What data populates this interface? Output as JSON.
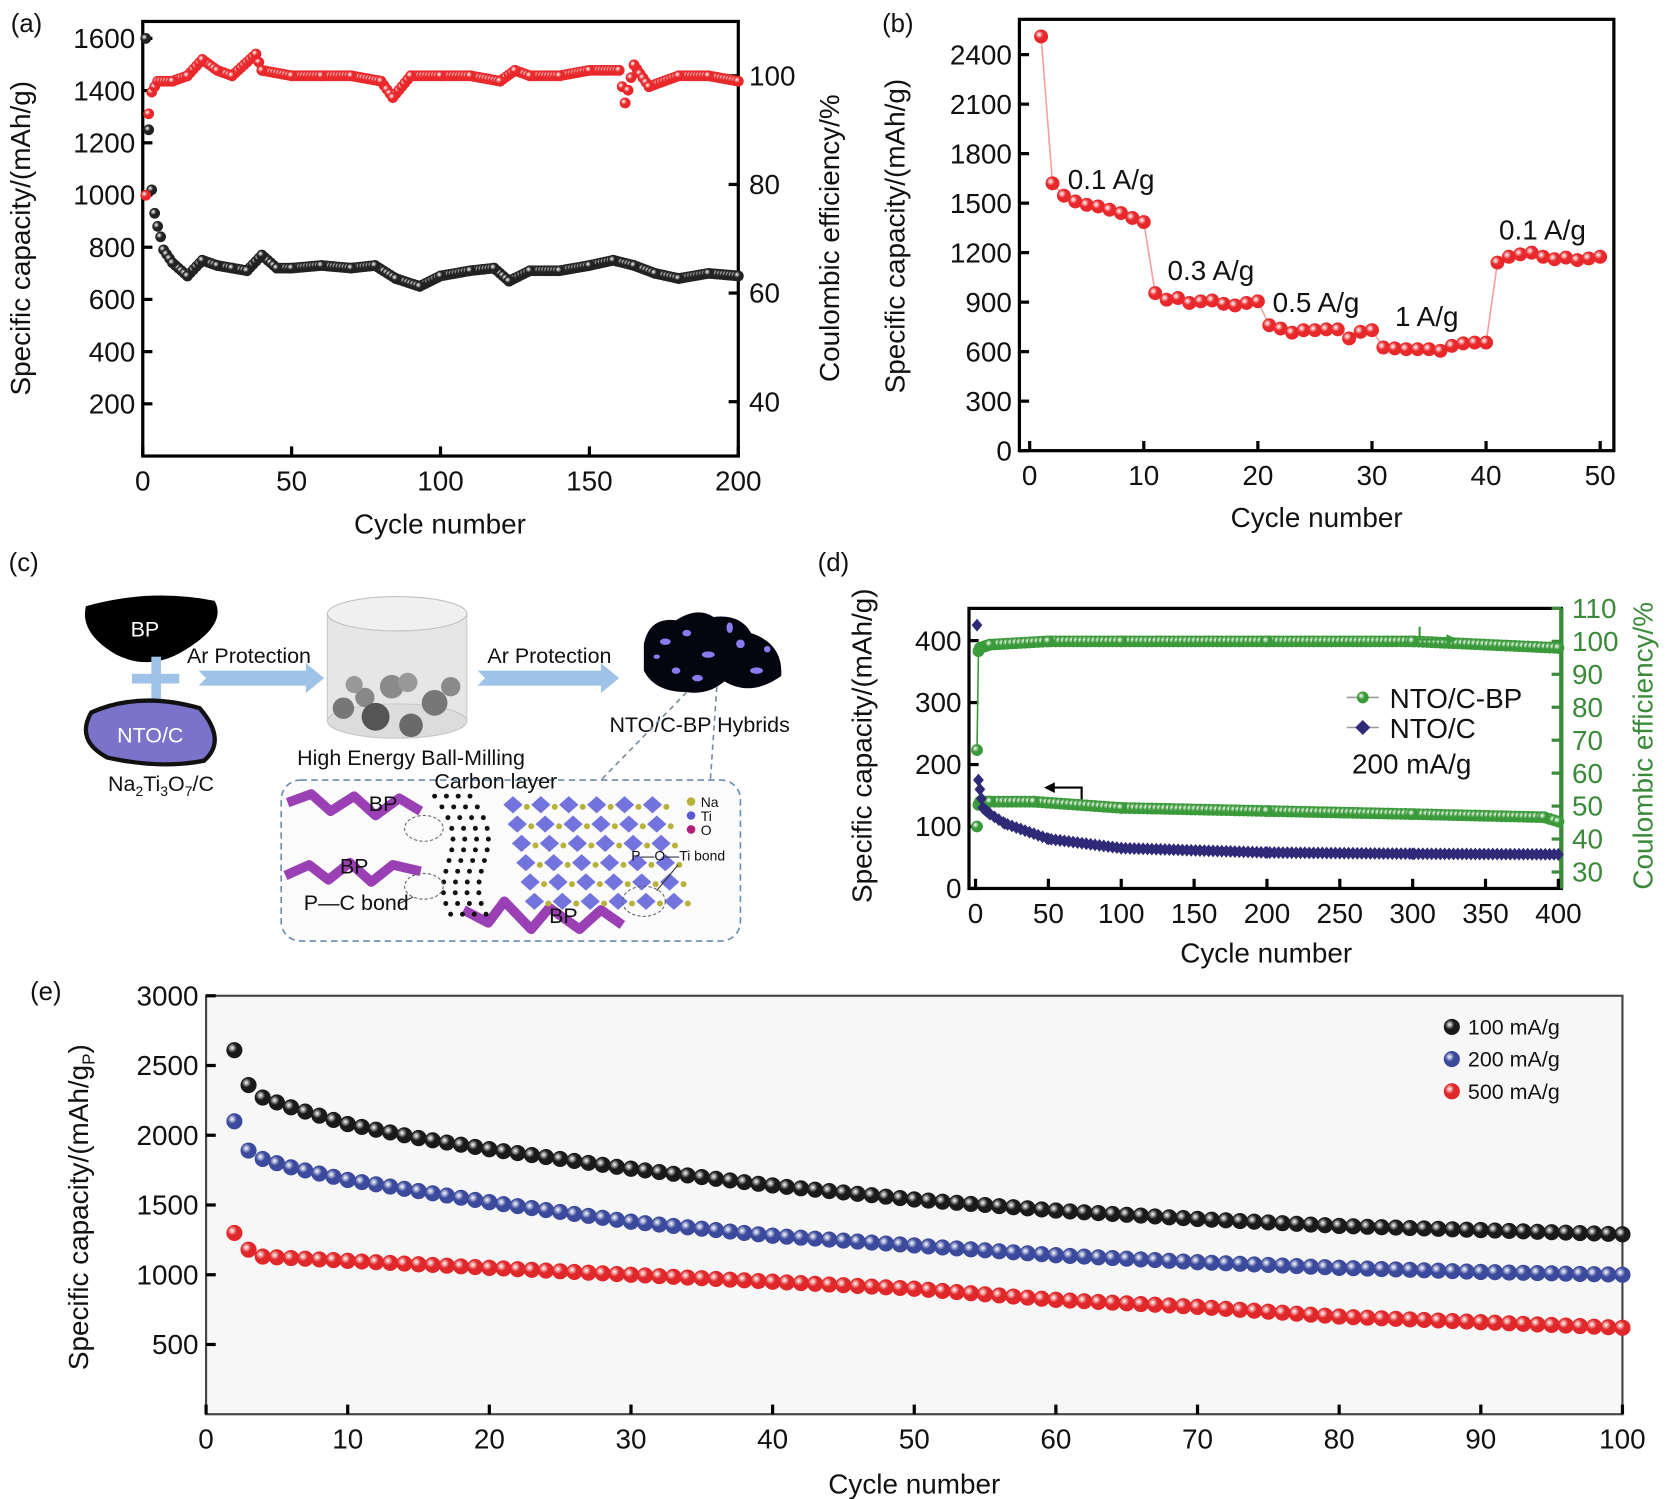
{
  "chart_data": [
    {
      "label": "(a)",
      "type": "scatter",
      "xlabel": "Cycle number",
      "ylabel": "Specific capacity/(mAh/g)",
      "y2label": "Coulombic efficiency/%",
      "xlim": [
        0,
        200
      ],
      "ylim": [
        0,
        1665
      ],
      "y2lim": [
        30,
        110
      ],
      "xticks": [
        0,
        50,
        100,
        150,
        200
      ],
      "yticks": [
        200,
        400,
        600,
        800,
        1000,
        1200,
        1400,
        1600
      ],
      "y2ticks": [
        40,
        60,
        80,
        100
      ],
      "grid": false,
      "series": [
        {
          "axis": "left",
          "color": "#222222",
          "marker": "circle",
          "x": [
            1,
            2,
            3,
            4,
            5,
            6,
            7,
            10,
            15,
            20,
            25,
            30,
            35,
            40,
            45,
            50,
            60,
            70,
            78,
            85,
            93,
            100,
            110,
            118,
            123,
            130,
            140,
            150,
            158,
            165,
            172,
            180,
            190,
            200
          ],
          "y": [
            1600,
            1250,
            1020,
            930,
            880,
            840,
            790,
            740,
            690,
            750,
            730,
            720,
            710,
            770,
            720,
            720,
            730,
            720,
            730,
            680,
            650,
            690,
            710,
            720,
            670,
            710,
            710,
            730,
            750,
            730,
            700,
            680,
            700,
            690
          ]
        },
        {
          "axis": "right",
          "color": "#e8282b",
          "marker": "circle",
          "x": [
            1,
            2,
            3,
            5,
            10,
            15,
            20,
            25,
            30,
            38,
            40,
            50,
            60,
            70,
            80,
            84,
            90,
            100,
            110,
            120,
            125,
            130,
            140,
            150,
            160,
            162,
            165,
            170,
            180,
            190,
            200
          ],
          "y": [
            78,
            93,
            97,
            99,
            99,
            100,
            103,
            101,
            100,
            104,
            101,
            100,
            100,
            100,
            99,
            96,
            100,
            100,
            100,
            99,
            101,
            100,
            100,
            101,
            101,
            95,
            102,
            98,
            100,
            100,
            99
          ]
        }
      ]
    },
    {
      "label": "(b)",
      "type": "line",
      "xlabel": "Cycle number",
      "ylabel": "Specific capacity/(mAh/g)",
      "xlim": [
        -0.9,
        51.2
      ],
      "ylim": [
        0,
        2614
      ],
      "xticks": [
        0,
        10,
        20,
        30,
        40,
        50
      ],
      "yticks": [
        0,
        300,
        600,
        900,
        1200,
        1500,
        1800,
        2100,
        2400
      ],
      "grid": false,
      "series": [
        {
          "axis": "left",
          "color": "#e8282b",
          "line_color": "#f4a0a0",
          "marker": "circle",
          "x": [
            1,
            2,
            3,
            4,
            5,
            6,
            7,
            8,
            9,
            10,
            11,
            12,
            13,
            14,
            15,
            16,
            17,
            18,
            19,
            20,
            21,
            22,
            23,
            24,
            25,
            26,
            27,
            28,
            29,
            30,
            31,
            32,
            33,
            34,
            35,
            36,
            37,
            38,
            39,
            40,
            41,
            42,
            43,
            44,
            45,
            46,
            47,
            48,
            49,
            50
          ],
          "y": [
            2510,
            1620,
            1545,
            1510,
            1490,
            1480,
            1460,
            1440,
            1410,
            1385,
            955,
            915,
            925,
            895,
            905,
            910,
            890,
            880,
            895,
            905,
            760,
            740,
            715,
            730,
            730,
            735,
            735,
            680,
            720,
            730,
            625,
            620,
            615,
            615,
            615,
            605,
            635,
            650,
            655,
            655,
            1140,
            1175,
            1190,
            1200,
            1175,
            1160,
            1170,
            1155,
            1165,
            1175
          ]
        }
      ],
      "annotations": [
        "0.1 A/g",
        "0.3 A/g",
        "0.5 A/g",
        "1 A/g",
        "0.1 A/g"
      ]
    },
    {
      "label": "(d)",
      "type": "scatter",
      "xlabel": "Cycle number",
      "ylabel": "Specific capacity/(mAh/g)",
      "y2label": "Coulombic efficiency/%",
      "xlim": [
        -4.5,
        402
      ],
      "ylim": [
        0,
        452
      ],
      "y2lim": [
        25,
        110
      ],
      "xticks": [
        0,
        50,
        100,
        150,
        200,
        250,
        300,
        350,
        400
      ],
      "yticks": [
        0,
        100,
        200,
        300,
        400
      ],
      "y2ticks": [
        30,
        40,
        50,
        60,
        70,
        80,
        90,
        100,
        110
      ],
      "y2color": "#3a8a3a",
      "grid": false,
      "legend_position": "center-right",
      "series": [
        {
          "name": "NTO/C-BP",
          "axis": "left",
          "color": "#3a9a3a",
          "marker": "circle",
          "x": [
            1,
            2,
            3,
            10,
            40,
            100,
            200,
            300,
            390,
            400
          ],
          "y": [
            100,
            135,
            140,
            140,
            140,
            130,
            125,
            120,
            115,
            108
          ]
        },
        {
          "name": "NTO/C-BP",
          "axis": "right",
          "color": "#3a9a3a",
          "marker": "circle",
          "x": [
            1,
            2,
            3,
            10,
            50,
            100,
            200,
            300,
            400
          ],
          "y": [
            67,
            97,
            98,
            99,
            100,
            100,
            100,
            100,
            98
          ]
        },
        {
          "name": "NTO/C",
          "axis": "left",
          "color": "#2e2a78",
          "marker": "diamond",
          "x": [
            1,
            2,
            3,
            5,
            10,
            20,
            50,
            100,
            200,
            300,
            400
          ],
          "y": [
            425,
            175,
            160,
            130,
            120,
            105,
            80,
            65,
            58,
            56,
            55
          ]
        }
      ],
      "legend": [
        "NTO/C-BP",
        "NTO/C"
      ],
      "annotation": "200 mA/g"
    },
    {
      "label": "(e)",
      "type": "scatter",
      "xlabel": "Cycle number",
      "ylabel_main": "Specific capacity/(mAh/g",
      "ylabel_sub": "P",
      "ylabel_end": ")",
      "xlim": [
        0,
        100
      ],
      "ylim": [
        0,
        3000
      ],
      "xticks": [
        0,
        10,
        20,
        30,
        40,
        50,
        60,
        70,
        80,
        90,
        100
      ],
      "yticks": [
        500,
        1000,
        1500,
        2000,
        2500,
        3000
      ],
      "grid": false,
      "legend_position": "top-right",
      "series": [
        {
          "name": "100 mA/g",
          "axis": "left",
          "color": "#1a1a1a",
          "marker": "circle",
          "x": [
            2,
            3,
            4,
            6,
            10,
            15,
            20,
            30,
            40,
            50,
            60,
            70,
            80,
            90,
            100
          ],
          "y": [
            2610,
            2360,
            2270,
            2200,
            2080,
            1980,
            1900,
            1760,
            1640,
            1540,
            1460,
            1400,
            1350,
            1320,
            1290
          ]
        },
        {
          "name": "200 mA/g",
          "axis": "left",
          "color": "#3b4a9c",
          "marker": "circle",
          "x": [
            2,
            3,
            4,
            6,
            10,
            15,
            20,
            30,
            40,
            50,
            60,
            70,
            80,
            90,
            100
          ],
          "y": [
            2100,
            1890,
            1830,
            1770,
            1680,
            1600,
            1520,
            1380,
            1280,
            1210,
            1140,
            1090,
            1050,
            1020,
            1000
          ]
        },
        {
          "name": "500 mA/g",
          "axis": "left",
          "color": "#e0272a",
          "marker": "circle",
          "x": [
            2,
            3,
            4,
            6,
            10,
            15,
            20,
            30,
            40,
            50,
            60,
            70,
            80,
            90,
            100
          ],
          "y": [
            1300,
            1180,
            1130,
            1120,
            1100,
            1075,
            1050,
            1000,
            950,
            900,
            820,
            770,
            700,
            660,
            620
          ]
        }
      ]
    }
  ],
  "diagram": {
    "label": "(c)",
    "bp": "BP",
    "nto": "NTO/C",
    "formula": {
      "p1": "Na",
      "s1": "2",
      "p2": "Ti",
      "s2": "3",
      "p3": "O",
      "s3": "7",
      "p4": "/C"
    },
    "ar1": "Ar Protection",
    "ar2": "Ar Protection",
    "milling": "High Energy Ball-Milling",
    "hybrids": "NTO/C-BP Hybrids",
    "carbon": "Carbon layer",
    "legend": [
      "Na",
      "Ti",
      "O"
    ],
    "bp_labels": [
      "BP",
      "BP",
      "BP"
    ],
    "pc_bond": "P—C bond",
    "poti_bond": "P—O—Ti bond",
    "colors": {
      "arrow": "#9ec3e6",
      "nto": "#7b72c9",
      "bp_chain": "#9b3fb5",
      "ti": "#5a5ad8",
      "na": "#b8b23a",
      "o": "#b0207a"
    }
  }
}
